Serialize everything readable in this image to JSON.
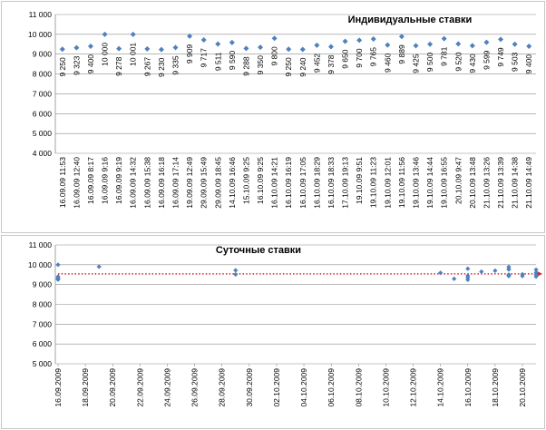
{
  "chart_data": [
    {
      "type": "scatter",
      "title": "Индивидуальные ставки",
      "ylim": [
        4000,
        11000
      ],
      "yticks": [
        "4 000",
        "5 000",
        "6 000",
        "7 000",
        "8 000",
        "9 000",
        "10 000",
        "11 000"
      ],
      "ytick_values": [
        4000,
        5000,
        6000,
        7000,
        8000,
        9000,
        10000,
        11000
      ],
      "grid": true,
      "marker_color": "#4f81bd",
      "categories": [
        "16.09.09 11:53",
        "16.09.09 12:40",
        "16.09.09 8:17",
        "16.09.09 9:16",
        "16.09.09 9:19",
        "16.09.09 14:32",
        "16.09.09 15:38",
        "16.09.09 16:18",
        "16.09.09 17:14",
        "19.09.09 12:49",
        "29.09.09 15:49",
        "29.09.09 18:45",
        "14.10.09 16:46",
        "15.10.09 9:25",
        "16.10.09 9:25",
        "16.10.09 14:21",
        "16.10.09 16:19",
        "16.10.09 17:05",
        "16.10.09 18:29",
        "16.10.09 18:33",
        "17.10.09 19:13",
        "19.10.09 9:51",
        "19.10.09 11:23",
        "19.10.09 12:01",
        "19.10.09 11:56",
        "19.10.09 13:46",
        "19.10.09 14:44",
        "19.10.09 16:55",
        "20.10.09 9:47",
        "20.10.09 13:48",
        "21.10.09 13:26",
        "21.10.09 13:39",
        "21.10.09 14:38",
        "21.10.09 14:49"
      ],
      "values": [
        9250,
        9323,
        9400,
        10000,
        9278,
        10001,
        9267,
        9230,
        9335,
        9909,
        9717,
        9511,
        9590,
        9288,
        9350,
        9800,
        9250,
        9240,
        9452,
        9378,
        9650,
        9700,
        9765,
        9460,
        9889,
        9425,
        9500,
        9781,
        9520,
        9430,
        9599,
        9749,
        9503,
        9400
      ],
      "value_labels": [
        "9 250",
        "9 323",
        "9 400",
        "10 000",
        "9 278",
        "10 001",
        "9 267",
        "9 230",
        "9 335",
        "9 909",
        "9 717",
        "9 511",
        "9 590",
        "9 288",
        "9 350",
        "9 800",
        "9 250",
        "9 240",
        "9 452",
        "9 378",
        "9 650",
        "9 700",
        "9 765",
        "9 460",
        "9 889",
        "9 425",
        "9 500",
        "9 781",
        "9 520",
        "9 430",
        "9 599",
        "9 749",
        "9 503",
        "9 400"
      ]
    },
    {
      "type": "scatter",
      "title": "Суточные ставки",
      "ylim": [
        5000,
        11000
      ],
      "yticks": [
        "5 000",
        "6 000",
        "7 000",
        "8 000",
        "9 000",
        "10 000",
        "11 000"
      ],
      "ytick_values": [
        5000,
        6000,
        7000,
        8000,
        9000,
        10000,
        11000
      ],
      "grid": true,
      "marker_color": "#4f81bd",
      "trend_color": "#e02020",
      "trend_value": 9540,
      "x_start_label": "16.09.2009",
      "xticks": [
        "16.09.2009",
        "18.09.2009",
        "20.09.2009",
        "22.09.2009",
        "24.09.2009",
        "26.09.2009",
        "28.09.2009",
        "30.09.2009",
        "02.10.2009",
        "04.10.2009",
        "06.10.2009",
        "08.10.2009",
        "10.10.2009",
        "12.10.2009",
        "14.10.2009",
        "16.10.2009",
        "18.10.2009",
        "20.10.2009"
      ],
      "points": [
        {
          "x": 0,
          "y": 10000
        },
        {
          "x": 0,
          "y": 9400
        },
        {
          "x": 0,
          "y": 9330
        },
        {
          "x": 0,
          "y": 9280
        },
        {
          "x": 0,
          "y": 9250
        },
        {
          "x": 3,
          "y": 9900
        },
        {
          "x": 13,
          "y": 9720
        },
        {
          "x": 13,
          "y": 9510
        },
        {
          "x": 28,
          "y": 9590
        },
        {
          "x": 29,
          "y": 9290
        },
        {
          "x": 30,
          "y": 9350
        },
        {
          "x": 30,
          "y": 9800
        },
        {
          "x": 30,
          "y": 9240
        },
        {
          "x": 30,
          "y": 9450
        },
        {
          "x": 31,
          "y": 9650
        },
        {
          "x": 32,
          "y": 9700
        },
        {
          "x": 33,
          "y": 9760
        },
        {
          "x": 33,
          "y": 9460
        },
        {
          "x": 33,
          "y": 9890
        },
        {
          "x": 33,
          "y": 9430
        },
        {
          "x": 33,
          "y": 9500
        },
        {
          "x": 33,
          "y": 9780
        },
        {
          "x": 34,
          "y": 9520
        },
        {
          "x": 34,
          "y": 9430
        },
        {
          "x": 35,
          "y": 9600
        },
        {
          "x": 35,
          "y": 9750
        },
        {
          "x": 35,
          "y": 9500
        },
        {
          "x": 35,
          "y": 9400
        }
      ]
    }
  ]
}
